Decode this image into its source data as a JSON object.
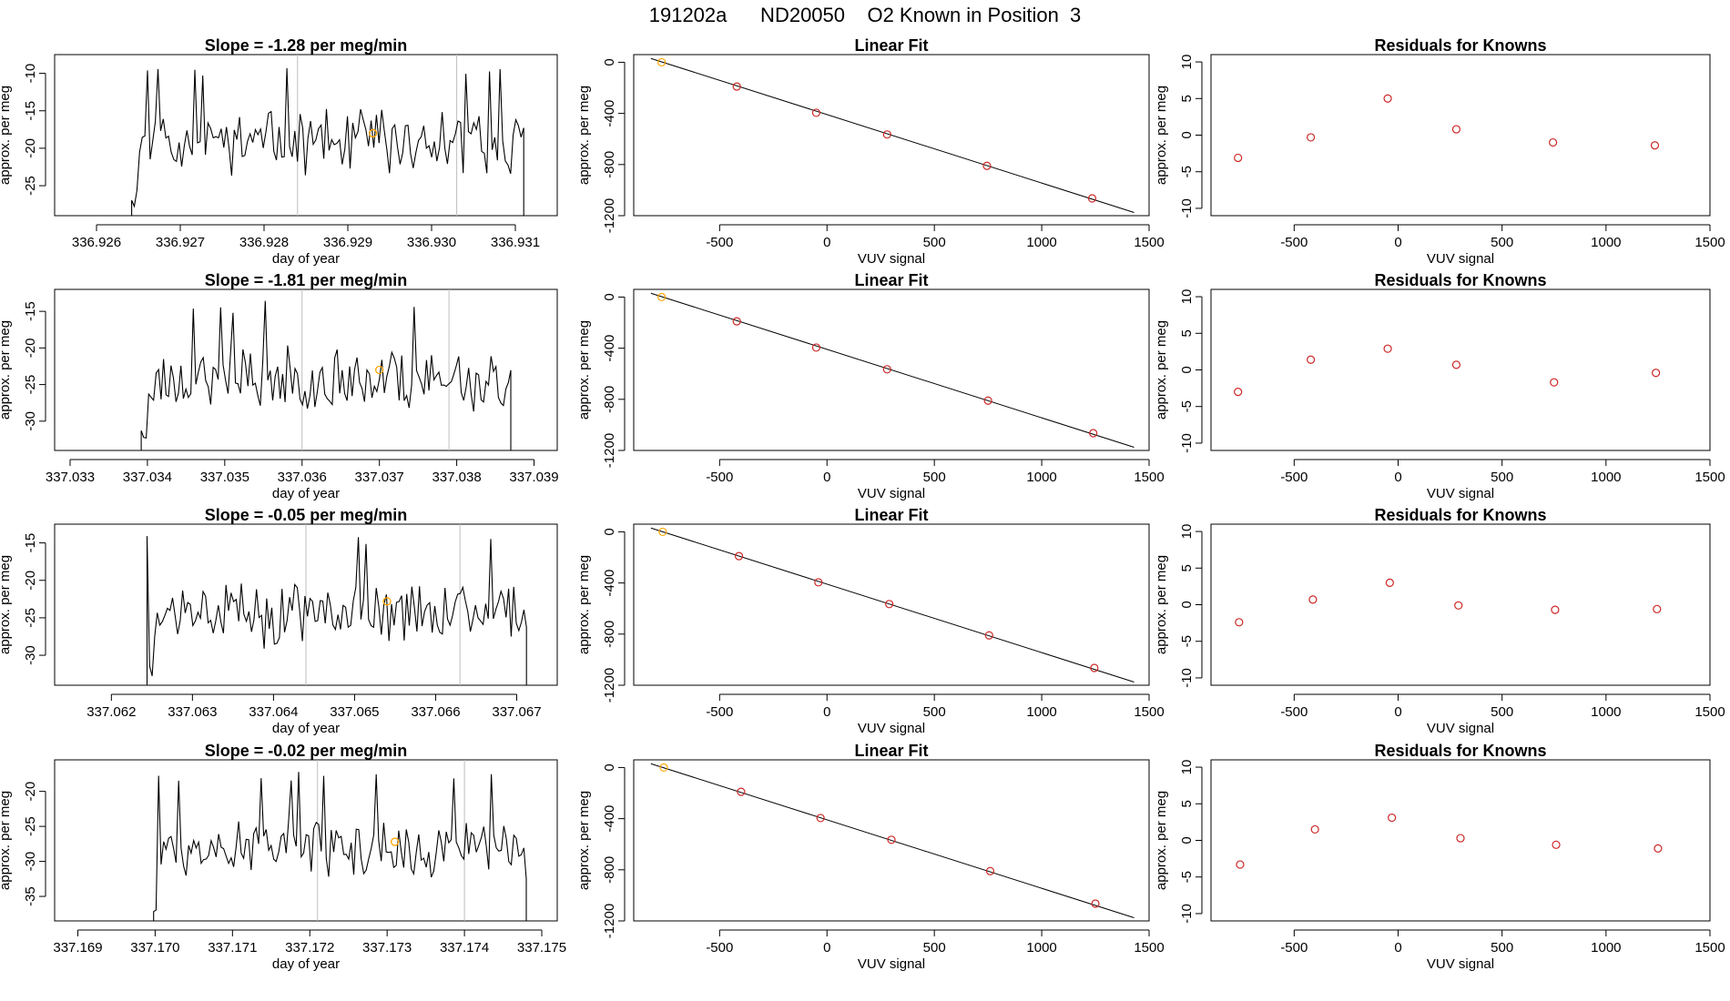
{
  "page_title": "191202a      ND20050    O2 Known in Position  3",
  "colors": {
    "line": "#000000",
    "known_point": "#FFA500",
    "fit_point": "#CD2626",
    "marker_line": "#BEBEBE",
    "frame": "#000000"
  },
  "chart_data": [
    {
      "type": "line",
      "row": 0,
      "col": 0,
      "title": "Slope =  -1.28  per meg/min",
      "xlabel": "day of year",
      "ylabel": "approx. per meg",
      "xlim": [
        336.9255,
        336.9315
      ],
      "ylim": [
        -29,
        -7.5
      ],
      "xticks": [
        336.926,
        336.927,
        336.928,
        336.929,
        336.93,
        336.931
      ],
      "xtick_labels": [
        "336.926",
        "336.927",
        "336.928",
        "336.929",
        "336.930",
        "336.931"
      ],
      "yticks": [
        -25,
        -20,
        -15,
        -10
      ],
      "ytick_labels": [
        "-25",
        "-20",
        "-15",
        "-10"
      ],
      "vlines": [
        336.9284,
        336.9303
      ],
      "highlight": {
        "x": 336.9293,
        "y": -18
      },
      "seed": 11,
      "x_start": 336.92642,
      "x_end": 336.9311,
      "mean": -19.2,
      "amp": 3.3
    },
    {
      "type": "scatter",
      "row": 0,
      "col": 1,
      "title": "Linear Fit",
      "xlabel": "VUV signal",
      "ylabel": "approx. per meg",
      "xlim": [
        -900,
        1500
      ],
      "ylim": [
        -1200,
        60
      ],
      "xticks": [
        -500,
        0,
        500,
        1000,
        1500
      ],
      "xtick_labels": [
        "-500",
        "0",
        "500",
        "1000",
        "1500"
      ],
      "yticks": [
        -1200,
        -800,
        -400,
        0
      ],
      "ytick_labels": [
        "-1200",
        "-800",
        "-400",
        "0"
      ],
      "line": {
        "x": [
          -820,
          1430
        ],
        "y": [
          30,
          -1175
        ]
      },
      "points": {
        "x": [
          -770,
          -420,
          -50,
          280,
          745,
          1235
        ],
        "y": [
          0,
          -190,
          -395,
          -565,
          -810,
          -1065
        ]
      },
      "highlight_index": 0
    },
    {
      "type": "scatter",
      "row": 0,
      "col": 2,
      "title": "Residuals for Knowns",
      "xlabel": "VUV signal",
      "ylabel": "approx. per meg",
      "xlim": [
        -900,
        1500
      ],
      "ylim": [
        -11,
        11
      ],
      "xticks": [
        -500,
        0,
        500,
        1000,
        1500
      ],
      "xtick_labels": [
        "-500",
        "0",
        "500",
        "1000",
        "1500"
      ],
      "yticks": [
        -10,
        -5,
        0,
        5,
        10
      ],
      "ytick_labels": [
        "-10",
        "-5",
        "0",
        "5",
        "10"
      ],
      "points": {
        "x": [
          -770,
          -420,
          -50,
          280,
          745,
          1235
        ],
        "y": [
          -3.1,
          -0.3,
          5.0,
          0.8,
          -1.0,
          -1.4
        ]
      }
    },
    {
      "type": "line",
      "row": 1,
      "col": 0,
      "title": "Slope =  -1.81  per meg/min",
      "xlabel": "day of year",
      "ylabel": "approx. per meg",
      "xlim": [
        337.0328,
        337.0393
      ],
      "ylim": [
        -34,
        -12
      ],
      "xticks": [
        337.033,
        337.034,
        337.035,
        337.036,
        337.037,
        337.038,
        337.039
      ],
      "xtick_labels": [
        "337.033",
        "337.034",
        "337.035",
        "337.036",
        "337.037",
        "337.038",
        "337.039"
      ],
      "yticks": [
        -30,
        -25,
        -20,
        -15
      ],
      "ytick_labels": [
        "-30",
        "-25",
        "-20",
        "-15"
      ],
      "vlines": [
        337.036,
        337.0379
      ],
      "highlight": {
        "x": 337.037,
        "y": -23
      },
      "seed": 23,
      "x_start": 337.03392,
      "x_end": 337.0387,
      "mean": -24.2,
      "amp": 3.4
    },
    {
      "type": "scatter",
      "row": 1,
      "col": 1,
      "title": "Linear Fit",
      "xlabel": "VUV signal",
      "ylabel": "approx. per meg",
      "xlim": [
        -900,
        1500
      ],
      "ylim": [
        -1200,
        60
      ],
      "xticks": [
        -500,
        0,
        500,
        1000,
        1500
      ],
      "xtick_labels": [
        "-500",
        "0",
        "500",
        "1000",
        "1500"
      ],
      "yticks": [
        -1200,
        -800,
        -400,
        0
      ],
      "ytick_labels": [
        "-1200",
        "-800",
        "-400",
        "0"
      ],
      "line": {
        "x": [
          -820,
          1430
        ],
        "y": [
          30,
          -1175
        ]
      },
      "points": {
        "x": [
          -770,
          -420,
          -50,
          280,
          750,
          1240
        ],
        "y": [
          0,
          -190,
          -395,
          -565,
          -810,
          -1065
        ]
      },
      "highlight_index": 0
    },
    {
      "type": "scatter",
      "row": 1,
      "col": 2,
      "title": "Residuals for Knowns",
      "xlabel": "VUV signal",
      "ylabel": "approx. per meg",
      "xlim": [
        -900,
        1500
      ],
      "ylim": [
        -11,
        11
      ],
      "xticks": [
        -500,
        0,
        500,
        1000,
        1500
      ],
      "xtick_labels": [
        "-500",
        "0",
        "500",
        "1000",
        "1500"
      ],
      "yticks": [
        -10,
        -5,
        0,
        5,
        10
      ],
      "ytick_labels": [
        "-10",
        "-5",
        "0",
        "5",
        "10"
      ],
      "points": {
        "x": [
          -770,
          -420,
          -50,
          280,
          750,
          1240
        ],
        "y": [
          -3.0,
          1.4,
          2.9,
          0.7,
          -1.7,
          -0.4
        ]
      }
    },
    {
      "type": "line",
      "row": 2,
      "col": 0,
      "title": "Slope =  -0.05  per meg/min",
      "xlabel": "day of year",
      "ylabel": "approx. per meg",
      "xlim": [
        337.0613,
        337.0675
      ],
      "ylim": [
        -34,
        -12.5
      ],
      "xticks": [
        337.062,
        337.063,
        337.064,
        337.065,
        337.066,
        337.067
      ],
      "xtick_labels": [
        "337.062",
        "337.063",
        "337.064",
        "337.065",
        "337.066",
        "337.067"
      ],
      "yticks": [
        -30,
        -25,
        -20,
        -15
      ],
      "ytick_labels": [
        "-30",
        "-25",
        "-20",
        "-15"
      ],
      "vlines": [
        337.0644,
        337.0663
      ],
      "highlight": {
        "x": 337.0654,
        "y": -22.8
      },
      "seed": 37,
      "x_start": 337.06244,
      "x_end": 337.06712,
      "mean": -24.5,
      "amp": 3.6
    },
    {
      "type": "scatter",
      "row": 2,
      "col": 1,
      "title": "Linear Fit",
      "xlabel": "VUV signal",
      "ylabel": "approx. per meg",
      "xlim": [
        -900,
        1500
      ],
      "ylim": [
        -1200,
        60
      ],
      "xticks": [
        -500,
        0,
        500,
        1000,
        1500
      ],
      "xtick_labels": [
        "-500",
        "0",
        "500",
        "1000",
        "1500"
      ],
      "yticks": [
        -1200,
        -800,
        -400,
        0
      ],
      "ytick_labels": [
        "-1200",
        "-800",
        "-400",
        "0"
      ],
      "line": {
        "x": [
          -820,
          1430
        ],
        "y": [
          30,
          -1175
        ]
      },
      "points": {
        "x": [
          -765,
          -410,
          -40,
          290,
          755,
          1245
        ],
        "y": [
          0,
          -190,
          -395,
          -565,
          -810,
          -1065
        ]
      },
      "highlight_index": 0
    },
    {
      "type": "scatter",
      "row": 2,
      "col": 2,
      "title": "Residuals for Knowns",
      "xlabel": "VUV signal",
      "ylabel": "approx. per meg",
      "xlim": [
        -900,
        1500
      ],
      "ylim": [
        -11,
        11
      ],
      "xticks": [
        -500,
        0,
        500,
        1000,
        1500
      ],
      "xtick_labels": [
        "-500",
        "0",
        "500",
        "1000",
        "1500"
      ],
      "yticks": [
        -10,
        -5,
        0,
        5,
        10
      ],
      "ytick_labels": [
        "-10",
        "-5",
        "0",
        "5",
        "10"
      ],
      "points": {
        "x": [
          -765,
          -410,
          -40,
          290,
          755,
          1245
        ],
        "y": [
          -2.4,
          0.7,
          3.0,
          -0.1,
          -0.7,
          -0.6
        ]
      }
    },
    {
      "type": "line",
      "row": 3,
      "col": 0,
      "title": "Slope =  -0.02  per meg/min",
      "xlabel": "day of year",
      "ylabel": "approx. per meg",
      "xlim": [
        337.1687,
        337.1752
      ],
      "ylim": [
        -38.5,
        -15.5
      ],
      "xticks": [
        337.169,
        337.17,
        337.171,
        337.172,
        337.173,
        337.174,
        337.175
      ],
      "xtick_labels": [
        "337.169",
        "337.170",
        "337.171",
        "337.172",
        "337.173",
        "337.174",
        "337.175"
      ],
      "yticks": [
        -35,
        -30,
        -25,
        -20
      ],
      "ytick_labels": [
        "-35",
        "-30",
        "-25",
        "-20"
      ],
      "vlines": [
        337.1721,
        337.174
      ],
      "highlight": {
        "x": 337.1731,
        "y": -27.2
      },
      "seed": 53,
      "x_start": 337.16998,
      "x_end": 337.1748,
      "mean": -28.3,
      "amp": 3.3
    },
    {
      "type": "scatter",
      "row": 3,
      "col": 1,
      "title": "Linear Fit",
      "xlabel": "VUV signal",
      "ylabel": "approx. per meg",
      "xlim": [
        -900,
        1500
      ],
      "ylim": [
        -1200,
        60
      ],
      "xticks": [
        -500,
        0,
        500,
        1000,
        1500
      ],
      "xtick_labels": [
        "-500",
        "0",
        "500",
        "1000",
        "1500"
      ],
      "yticks": [
        -1200,
        -800,
        -400,
        0
      ],
      "ytick_labels": [
        "-1200",
        "-800",
        "-400",
        "0"
      ],
      "line": {
        "x": [
          -820,
          1430
        ],
        "y": [
          30,
          -1175
        ]
      },
      "points": {
        "x": [
          -760,
          -400,
          -30,
          300,
          760,
          1250
        ],
        "y": [
          0,
          -190,
          -395,
          -565,
          -810,
          -1065
        ]
      },
      "highlight_index": 0
    },
    {
      "type": "scatter",
      "row": 3,
      "col": 2,
      "title": "Residuals for Knowns",
      "xlabel": "VUV signal",
      "ylabel": "approx. per meg",
      "xlim": [
        -900,
        1500
      ],
      "ylim": [
        -11,
        11
      ],
      "xticks": [
        -500,
        0,
        500,
        1000,
        1500
      ],
      "xtick_labels": [
        "-500",
        "0",
        "500",
        "1000",
        "1500"
      ],
      "yticks": [
        -10,
        -5,
        0,
        5,
        10
      ],
      "ytick_labels": [
        "-10",
        "-5",
        "0",
        "5",
        "10"
      ],
      "points": {
        "x": [
          -760,
          -400,
          -30,
          300,
          760,
          1250
        ],
        "y": [
          -3.3,
          1.5,
          3.1,
          0.3,
          -0.6,
          -1.1
        ]
      }
    }
  ]
}
